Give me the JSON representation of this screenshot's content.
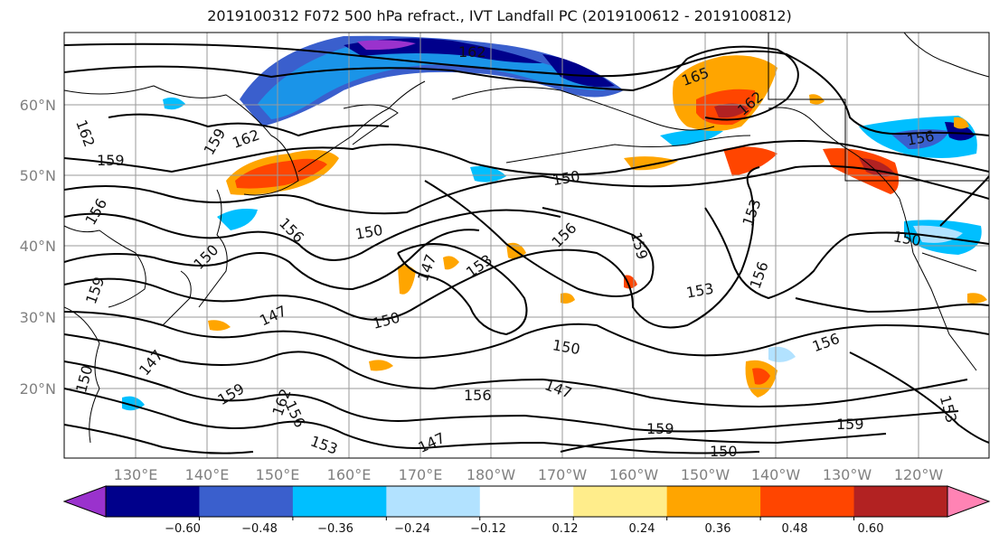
{
  "title": "2019100312 F072 500 hPa refract., IVT Landfall PC (2019100612 - 2019100812)",
  "lat_labels": [
    "60°N",
    "50°N",
    "40°N",
    "30°N",
    "20°N"
  ],
  "lon_labels": [
    "130°E",
    "140°E",
    "150°E",
    "160°E",
    "170°E",
    "180°W",
    "170°W",
    "160°W",
    "150°W",
    "140°W",
    "130°W",
    "120°W"
  ],
  "colorbar": {
    "colors": [
      "#9a32cd",
      "#00008b",
      "#3a5fcd",
      "#00bfff",
      "#b2e2ff",
      "#ffffff",
      "#ffed8b",
      "#ffa500",
      "#ff4500",
      "#b22222",
      "#ff83b4"
    ],
    "tick_labels": [
      "−0.60",
      "−0.48",
      "−0.36",
      "−0.24",
      "−0.12",
      "0.12",
      "0.24",
      "0.36",
      "0.48",
      "0.60"
    ]
  },
  "contour_labels": [
    {
      "text": "162"
    },
    {
      "text": "165"
    },
    {
      "text": "162"
    },
    {
      "text": "162"
    },
    {
      "text": "159"
    },
    {
      "text": "162"
    },
    {
      "text": "156"
    },
    {
      "text": "159"
    },
    {
      "text": "156"
    },
    {
      "text": "150"
    },
    {
      "text": "156"
    },
    {
      "text": "150"
    },
    {
      "text": "153"
    },
    {
      "text": "150"
    },
    {
      "text": "156"
    },
    {
      "text": "159"
    },
    {
      "text": "150"
    },
    {
      "text": "147"
    },
    {
      "text": "153"
    },
    {
      "text": "159"
    },
    {
      "text": "156"
    },
    {
      "text": "153"
    },
    {
      "text": "147"
    },
    {
      "text": "150"
    },
    {
      "text": "150"
    },
    {
      "text": "147"
    },
    {
      "text": "150"
    },
    {
      "text": "156"
    },
    {
      "text": "159"
    },
    {
      "text": "156"
    },
    {
      "text": "147"
    },
    {
      "text": "162"
    },
    {
      "text": "153"
    },
    {
      "text": "156"
    },
    {
      "text": "159"
    },
    {
      "text": "159"
    },
    {
      "text": "153"
    },
    {
      "text": "147"
    },
    {
      "text": "150"
    }
  ]
}
